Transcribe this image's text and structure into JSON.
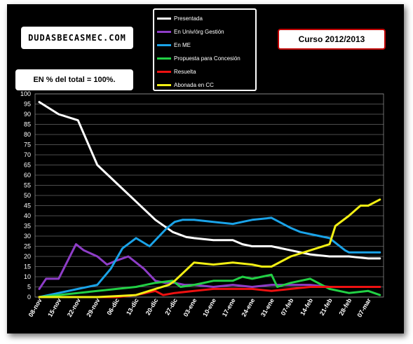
{
  "header": {
    "site_label": "DUDASBECASMEC.COM",
    "course_label": "Curso 2012/2013",
    "percent_note": "EN % del total = 100%."
  },
  "chart_data": {
    "type": "line",
    "title": "",
    "xlabel": "",
    "ylabel": "",
    "ylim": [
      0,
      100
    ],
    "y_ticks": [
      0,
      5,
      10,
      15,
      20,
      25,
      30,
      35,
      40,
      45,
      50,
      55,
      60,
      65,
      70,
      75,
      80,
      85,
      90,
      95,
      100
    ],
    "categories": [
      "08-nov",
      "15-nov",
      "22-nov",
      "29-nov",
      "06-dic",
      "13-dic",
      "20-dic",
      "27-dic",
      "03-ene",
      "10-ene",
      "17-ene",
      "24-ene",
      "31-ene",
      "07-feb",
      "14-feb",
      "21-feb",
      "28-feb",
      "07-mar"
    ],
    "x_positions": [
      0,
      1,
      2,
      3,
      4,
      5,
      6,
      7,
      8,
      9,
      10,
      11,
      12,
      13,
      14,
      15,
      16,
      17
    ],
    "grid": true,
    "legend_position": "top-center",
    "series": [
      {
        "name": "Presentada",
        "color": "#ffffff",
        "x": [
          0,
          1,
          2,
          3,
          4,
          5,
          6,
          6.9,
          7.6,
          8,
          9,
          10,
          10.5,
          11,
          11.8,
          12,
          13,
          14,
          15,
          16,
          17,
          17.6
        ],
        "y": [
          96,
          90,
          87,
          65,
          56,
          47,
          38,
          32,
          29.5,
          29,
          28,
          28,
          26,
          25,
          25,
          25,
          23,
          21,
          20,
          20,
          19,
          19
        ]
      },
      {
        "name": "En Univ/órg Gestión",
        "color": "#8e3dc7",
        "x": [
          0,
          0.35,
          1,
          1.9,
          2.3,
          3,
          3.5,
          4,
          4.6,
          5,
          5.4,
          6,
          6.5,
          7,
          7.5,
          8,
          9,
          10,
          11,
          12,
          13,
          14,
          15,
          16,
          17,
          17.6
        ],
        "y": [
          4,
          9,
          9,
          26,
          23,
          20,
          16,
          18,
          20,
          17,
          14,
          8,
          7,
          7,
          6,
          6,
          5,
          6,
          5,
          6,
          6,
          6,
          5,
          5,
          5,
          5
        ]
      },
      {
        "name": "En ME",
        "color": "#1aa3e8",
        "x": [
          0,
          1,
          2,
          3,
          3.7,
          4.3,
          5,
          5.7,
          6.6,
          7,
          7.4,
          8,
          9,
          10,
          10.5,
          11,
          12,
          13,
          13.5,
          14,
          15,
          15.8,
          16,
          17,
          17.6
        ],
        "y": [
          0,
          2,
          4,
          6,
          14,
          24,
          29,
          25,
          34,
          37,
          38,
          38,
          37,
          36,
          37,
          38,
          39,
          34,
          32,
          31,
          29,
          23,
          22,
          22,
          22
        ]
      },
      {
        "name": "Propuesta para  Concesión",
        "color": "#22d045",
        "x": [
          0,
          1,
          2,
          3,
          4,
          5,
          6,
          6.9,
          7.3,
          8,
          9,
          10,
          10.5,
          11,
          12,
          12.3,
          13,
          14,
          15,
          16,
          17,
          17.6
        ],
        "y": [
          0,
          1,
          2,
          3,
          4,
          5,
          7,
          8,
          5,
          6,
          8,
          8,
          10,
          9,
          11,
          5,
          7,
          9,
          4,
          2,
          3,
          1
        ]
      },
      {
        "name": "Resuelta",
        "color": "#ee1111",
        "x": [
          0,
          1,
          2,
          3,
          4,
          5,
          6,
          6.4,
          7,
          8,
          9,
          10,
          11,
          12,
          13,
          14,
          15,
          16,
          17,
          17.6
        ],
        "y": [
          0,
          0,
          0,
          0,
          0,
          1,
          3,
          1,
          2,
          3,
          4,
          4,
          4,
          3,
          4,
          5,
          5,
          5,
          5,
          5
        ]
      },
      {
        "name": "Abonada en CC",
        "color": "#f2ef14",
        "x": [
          0,
          1,
          2,
          3,
          4,
          5,
          6,
          6.7,
          7,
          8,
          9,
          10,
          11,
          11.5,
          12,
          13,
          14,
          15,
          15.3,
          16,
          16.6,
          17,
          17.6
        ],
        "y": [
          0,
          0,
          0,
          0,
          0.5,
          1,
          4,
          6,
          8,
          17,
          16,
          17,
          16,
          15,
          15,
          20,
          23,
          26,
          35,
          40,
          45,
          45,
          48
        ]
      }
    ]
  }
}
